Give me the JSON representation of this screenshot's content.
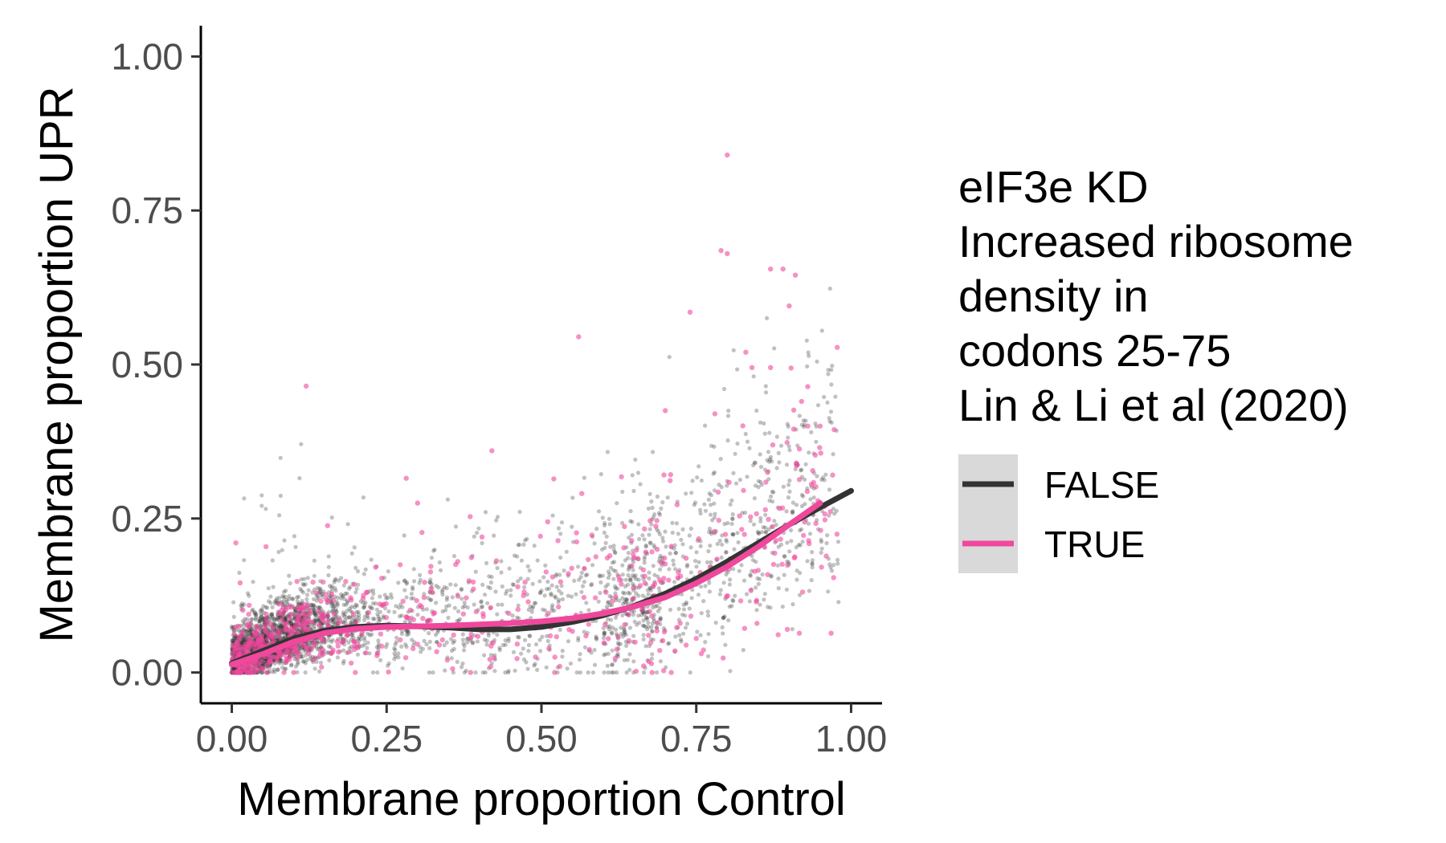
{
  "chart_data": {
    "type": "scatter",
    "xlabel": "Membrane proportion Control",
    "ylabel": "Membrane proportion UPR",
    "xlim": [
      -0.05,
      1.05
    ],
    "ylim": [
      -0.05,
      1.05
    ],
    "x_ticks": [
      0,
      0.25,
      0.5,
      0.75,
      1
    ],
    "x_tick_labels": [
      "0.00",
      "0.25",
      "0.50",
      "0.75",
      "1.00"
    ],
    "y_ticks": [
      0,
      0.25,
      0.5,
      0.75,
      1
    ],
    "y_tick_labels": [
      "0.00",
      "0.25",
      "0.50",
      "0.75",
      "1.00"
    ],
    "grid": false,
    "legend": {
      "placement": "right",
      "title_lines": [
        "eIF3e KD",
        "Increased ribosome",
        "density in",
        "codons 25-75",
        "Lin & Li et al (2020)"
      ]
    },
    "series": [
      {
        "name": "FALSE",
        "color": "#333333",
        "point_alpha": 0.3,
        "smooth": {
          "x": [
            0,
            0.05,
            0.1,
            0.15,
            0.2,
            0.25,
            0.3,
            0.35,
            0.4,
            0.45,
            0.5,
            0.55,
            0.6,
            0.65,
            0.7,
            0.75,
            0.8,
            0.85,
            0.9,
            0.95,
            1.0
          ],
          "y": [
            0.015,
            0.035,
            0.055,
            0.068,
            0.074,
            0.076,
            0.075,
            0.073,
            0.07,
            0.07,
            0.074,
            0.082,
            0.093,
            0.108,
            0.128,
            0.152,
            0.18,
            0.21,
            0.24,
            0.268,
            0.295
          ]
        }
      },
      {
        "name": "TRUE",
        "color": "#f0489d",
        "point_alpha": 0.6,
        "smooth": {
          "x": [
            0,
            0.05,
            0.1,
            0.15,
            0.2,
            0.25,
            0.3,
            0.35,
            0.4,
            0.45,
            0.5,
            0.55,
            0.6,
            0.65,
            0.7,
            0.75,
            0.8,
            0.85,
            0.9,
            0.95
          ],
          "y": [
            0.013,
            0.03,
            0.05,
            0.064,
            0.071,
            0.074,
            0.075,
            0.076,
            0.078,
            0.08,
            0.083,
            0.088,
            0.096,
            0.107,
            0.122,
            0.145,
            0.172,
            0.204,
            0.24,
            0.275
          ]
        }
      }
    ],
    "highlighted_points": [
      [
        0.12,
        0.465
      ],
      [
        0.56,
        0.545
      ],
      [
        0.8,
        0.84
      ],
      [
        0.79,
        0.685
      ],
      [
        0.8,
        0.68
      ],
      [
        0.74,
        0.585
      ],
      [
        0.87,
        0.655
      ],
      [
        0.89,
        0.655
      ],
      [
        0.91,
        0.645
      ],
      [
        0.9,
        0.595
      ],
      [
        0.83,
        0.52
      ],
      [
        0.84,
        0.495
      ],
      [
        0.87,
        0.495
      ],
      [
        0.42,
        0.36
      ],
      [
        0.3,
        0.275
      ],
      [
        0.7,
        0.425
      ],
      [
        0.78,
        0.42
      ],
      [
        0.93,
        0.4
      ],
      [
        0.95,
        0.4
      ],
      [
        0.92,
        0.44
      ]
    ]
  }
}
